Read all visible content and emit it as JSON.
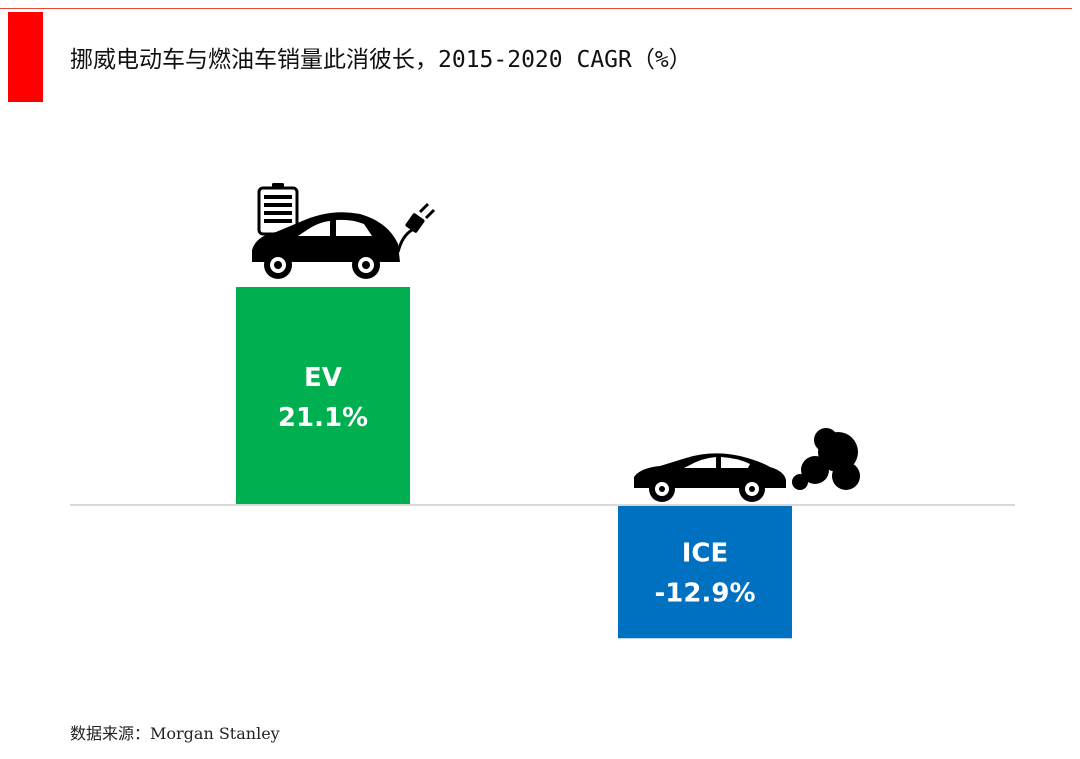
{
  "title": "挪威电动车与燃油车销量此消彼长，2015-2020 CAGR（%）",
  "source": "数据来源：Morgan Stanley",
  "colors": {
    "accent": "#ff0000",
    "ev": "#00b050",
    "ice": "#0070c0",
    "axis": "#d9d9d9"
  },
  "icons": [
    "ev-car-with-battery-and-plug-icon",
    "combustion-car-with-exhaust-icon"
  ],
  "chart_data": {
    "type": "bar",
    "categories": [
      "EV",
      "ICE"
    ],
    "values": [
      21.1,
      -12.9
    ],
    "data_labels": [
      "21.1%",
      "-12.9%"
    ],
    "colors": [
      "#00b050",
      "#0070c0"
    ],
    "title": "挪威电动车与燃油车销量此消彼长，2015-2020 CAGR（%）",
    "xlabel": "",
    "ylabel": "",
    "grid": false,
    "legend": "none"
  }
}
